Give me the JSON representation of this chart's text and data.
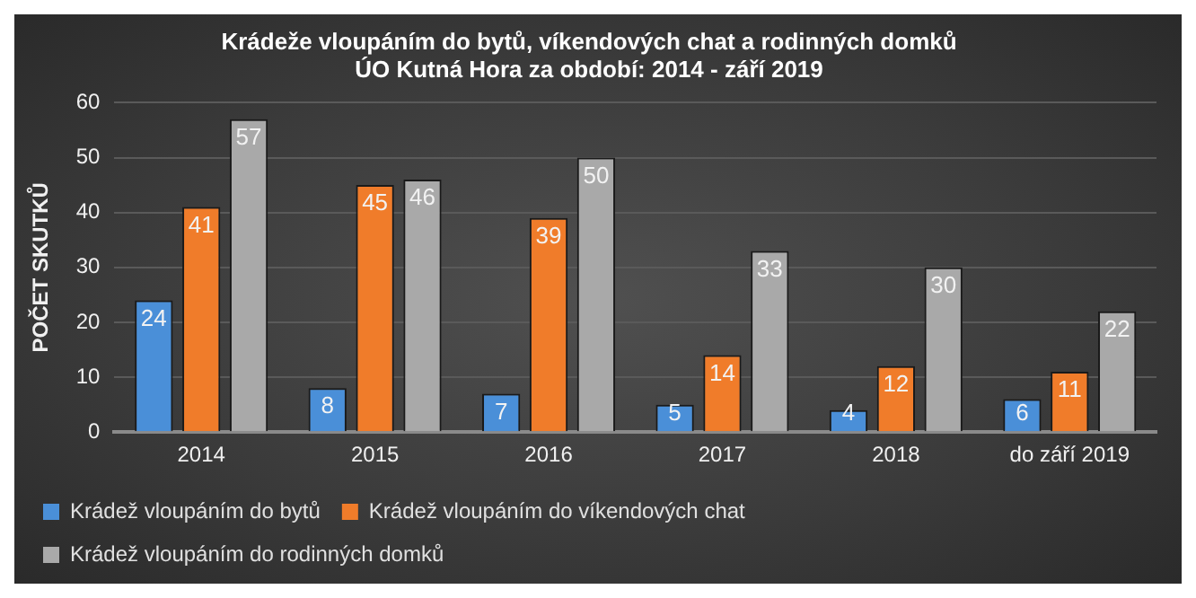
{
  "chart_data": {
    "type": "bar",
    "title": "Krádeže vloupáním do bytů, víkendových chat a rodinných domků\nÚO Kutná Hora za období: 2014 - září 2019",
    "ylabel": "POČET SKUTKŮ",
    "categories": [
      "2014",
      "2015",
      "2016",
      "2017",
      "2018",
      "do září 2019"
    ],
    "series": [
      {
        "name": "Krádež vloupáním do bytů",
        "color": "#4a8fd8",
        "values": [
          24,
          8,
          7,
          5,
          4,
          6
        ]
      },
      {
        "name": "Krádež vloupáním do víkendových chat",
        "color": "#f07c2a",
        "values": [
          41,
          45,
          39,
          14,
          12,
          11
        ]
      },
      {
        "name": "Krádež vloupáním do rodinných domků",
        "color": "#a9a9a9",
        "values": [
          57,
          46,
          50,
          33,
          30,
          22
        ]
      }
    ],
    "ylim": [
      0,
      60
    ],
    "yticks": [
      0,
      10,
      20,
      30,
      40,
      50,
      60
    ],
    "grid": "y",
    "legend": "bottom",
    "data_labels": true
  }
}
